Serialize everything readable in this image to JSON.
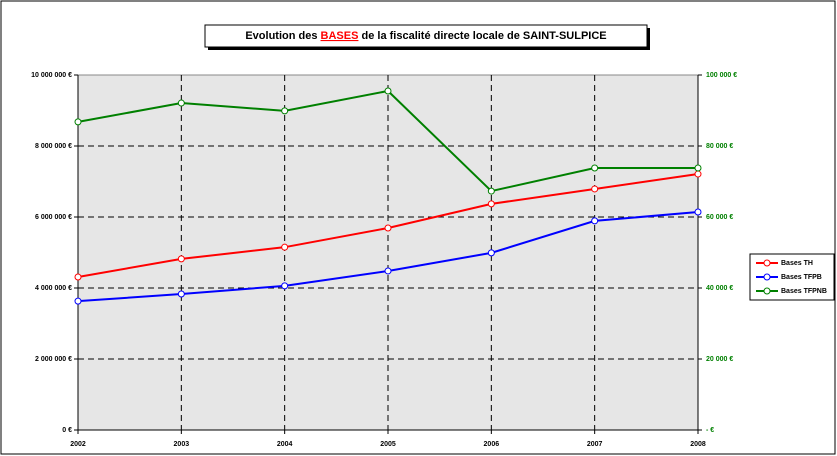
{
  "chart_data": {
    "type": "line",
    "title": [
      "Evolution des ",
      "BASES",
      " de la fiscalité directe locale de SAINT-SULPICE"
    ],
    "categories": [
      "2002",
      "2003",
      "2004",
      "2005",
      "2006",
      "2007",
      "2008"
    ],
    "series": [
      {
        "name": "Bases TH",
        "color": "#ff0000",
        "values": [
          4310000,
          4820000,
          5150000,
          5690000,
          6370000,
          6790000,
          7210000
        ]
      },
      {
        "name": "Bases TFPB",
        "color": "#0000ff",
        "values": [
          3630000,
          3830000,
          4060000,
          4480000,
          4990000,
          5890000,
          6140000
        ]
      },
      {
        "name": "Bases TFPNB",
        "color": "#008000",
        "axis": "y2",
        "values": [
          86800,
          92100,
          89900,
          95500,
          67300,
          73800,
          73800
        ]
      }
    ],
    "ylim": [
      0,
      10000000
    ],
    "yticks": [
      {
        "value": 0,
        "label": "0 €"
      },
      {
        "value": 2000000,
        "label": "2 000 000 €"
      },
      {
        "value": 4000000,
        "label": "4 000 000 €"
      },
      {
        "value": 6000000,
        "label": "6 000 000 €"
      },
      {
        "value": 8000000,
        "label": "8 000 000 €"
      },
      {
        "value": 10000000,
        "label": "10 000 000 €"
      }
    ],
    "y2lim": [
      0,
      100000
    ],
    "y2ticks": [
      {
        "value": 0,
        "label": "- €"
      },
      {
        "value": 20000,
        "label": "20 000 €"
      },
      {
        "value": 40000,
        "label": "40 000 €"
      },
      {
        "value": 60000,
        "label": "60 000 €"
      },
      {
        "value": 80000,
        "label": "80 000 €"
      },
      {
        "value": 100000,
        "label": "100 000 €"
      }
    ],
    "y2color": "#008000",
    "grid": true,
    "legend": "right"
  }
}
